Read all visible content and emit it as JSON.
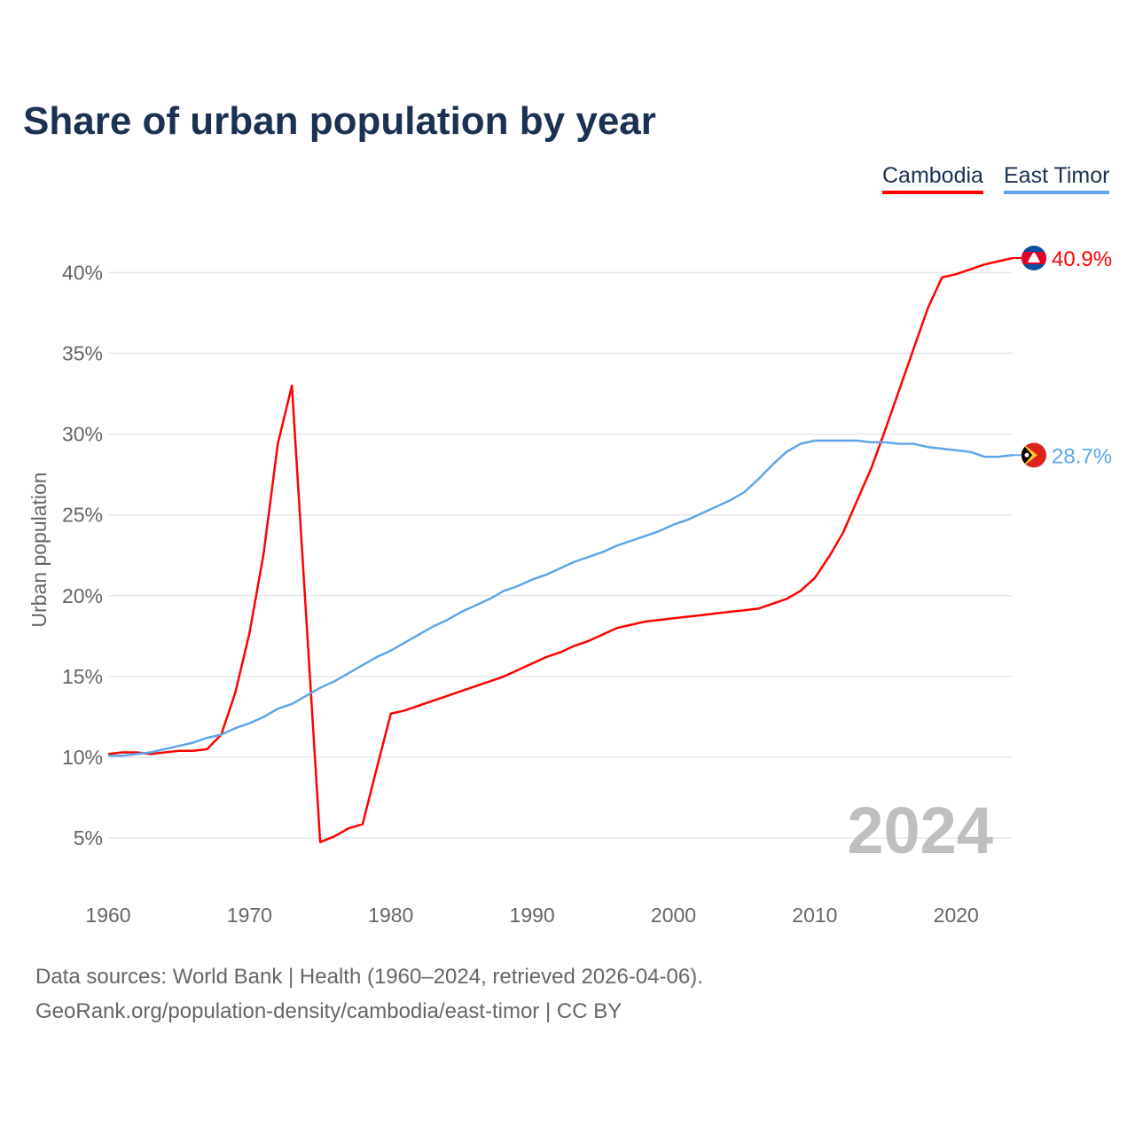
{
  "chart_data": {
    "type": "line",
    "title": "Share of urban population by year",
    "ylabel": "Urban population",
    "xlabel": "",
    "xlim": [
      1960,
      2024
    ],
    "ylim": [
      2,
      43
    ],
    "x_ticks": [
      "1960",
      "1970",
      "1980",
      "1990",
      "2000",
      "2010",
      "2020"
    ],
    "y_ticks": [
      5,
      10,
      15,
      20,
      25,
      30,
      35,
      40
    ],
    "y_tick_labels": [
      "5%",
      "10%",
      "15%",
      "20%",
      "25%",
      "30%",
      "35%",
      "40%"
    ],
    "grid": true,
    "legend_position": "top-right",
    "year_watermark": "2024",
    "x": [
      1960,
      1961,
      1962,
      1963,
      1964,
      1965,
      1966,
      1967,
      1968,
      1969,
      1970,
      1971,
      1972,
      1973,
      1974,
      1975,
      1976,
      1977,
      1978,
      1979,
      1980,
      1981,
      1982,
      1983,
      1984,
      1985,
      1986,
      1987,
      1988,
      1989,
      1990,
      1991,
      1992,
      1993,
      1994,
      1995,
      1996,
      1997,
      1998,
      1999,
      2000,
      2001,
      2002,
      2003,
      2004,
      2005,
      2006,
      2007,
      2008,
      2009,
      2010,
      2011,
      2012,
      2013,
      2014,
      2015,
      2016,
      2017,
      2018,
      2019,
      2020,
      2021,
      2022,
      2023,
      2024
    ],
    "series": [
      {
        "name": "Cambodia",
        "color": "#ff0000",
        "end_label": "40.9%",
        "flag": "cambodia-flag",
        "values": [
          10.2,
          10.3,
          10.3,
          10.2,
          10.3,
          10.4,
          10.4,
          10.5,
          11.4,
          14.0,
          17.7,
          22.6,
          29.4,
          33.0,
          18.9,
          4.75,
          5.1,
          5.6,
          5.85,
          9.3,
          12.7,
          12.9,
          13.2,
          13.5,
          13.8,
          14.1,
          14.4,
          14.7,
          15.0,
          15.4,
          15.8,
          16.2,
          16.5,
          16.9,
          17.2,
          17.6,
          18.0,
          18.2,
          18.4,
          18.5,
          18.6,
          18.7,
          18.8,
          18.9,
          19.0,
          19.1,
          19.2,
          19.5,
          19.8,
          20.3,
          21.1,
          22.4,
          23.9,
          25.9,
          27.9,
          30.3,
          32.8,
          35.3,
          37.8,
          39.7,
          39.9,
          40.2,
          40.5,
          40.7,
          40.9
        ]
      },
      {
        "name": "East Timor",
        "color": "#5fa6e8",
        "end_label": "28.7%",
        "flag": "east-timor-flag",
        "values": [
          10.1,
          10.1,
          10.2,
          10.3,
          10.5,
          10.7,
          10.9,
          11.2,
          11.4,
          11.8,
          12.1,
          12.5,
          13.0,
          13.3,
          13.8,
          14.3,
          14.7,
          15.2,
          15.7,
          16.2,
          16.6,
          17.1,
          17.6,
          18.1,
          18.5,
          19.0,
          19.4,
          19.8,
          20.3,
          20.6,
          21.0,
          21.3,
          21.7,
          22.1,
          22.4,
          22.7,
          23.1,
          23.4,
          23.7,
          24.0,
          24.4,
          24.7,
          25.1,
          25.5,
          25.9,
          26.4,
          27.2,
          28.1,
          28.9,
          29.4,
          29.6,
          29.6,
          29.6,
          29.6,
          29.5,
          29.5,
          29.4,
          29.4,
          29.2,
          29.1,
          29.0,
          28.9,
          28.6,
          28.6,
          28.7
        ]
      }
    ]
  },
  "footer": {
    "line1": "Data sources: World Bank | Health (1960–2024, retrieved 2026-04-06).",
    "line2": "GeoRank.org/population-density/cambodia/east-timor | CC BY"
  }
}
